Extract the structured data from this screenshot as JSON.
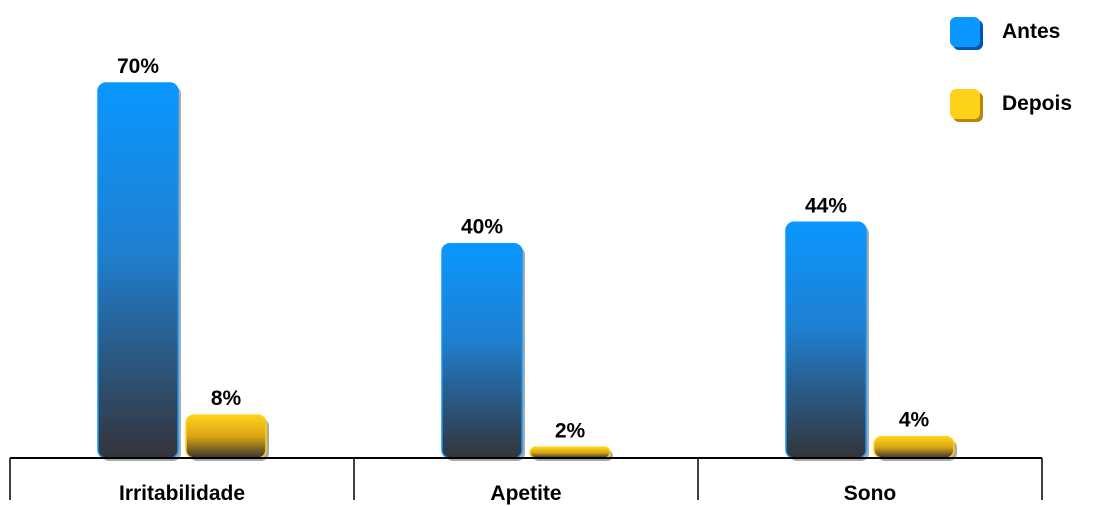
{
  "chart_data": {
    "type": "bar",
    "categories": [
      "Irritabilidade",
      "Apetite",
      "Sono"
    ],
    "series": [
      {
        "name": "Antes",
        "values": [
          70,
          40,
          44
        ],
        "color": "#0a97ff",
        "labels": [
          "70%",
          "40%",
          "44%"
        ]
      },
      {
        "name": "Depois",
        "values": [
          8,
          2,
          4
        ],
        "color": "#ffd21a",
        "labels": [
          "8%",
          "2%",
          "4%"
        ]
      }
    ],
    "ylim": [
      0,
      70
    ],
    "grid": false,
    "legend_position": "top-right"
  }
}
